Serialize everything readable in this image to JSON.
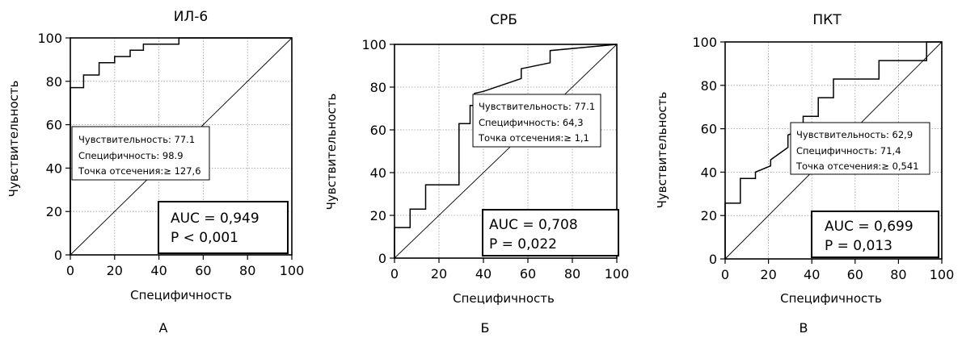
{
  "chart_data": [
    {
      "type": "line",
      "panel_label": "А",
      "title": "ИЛ-6",
      "xlabel": "Специфичность",
      "ylabel": "Чувствительность",
      "xlim": [
        0,
        100
      ],
      "ylim": [
        0,
        100
      ],
      "x_ticks": [
        "0",
        "20",
        "40",
        "60",
        "80",
        "100"
      ],
      "y_ticks": [
        "0",
        "20",
        "40",
        "60",
        "80",
        "100"
      ],
      "grid": true,
      "series": [
        {
          "values": [
            [
              0,
              0
            ],
            [
              0,
              77.1
            ],
            [
              6,
              77.1
            ],
            [
              6,
              82.9
            ],
            [
              13,
              82.9
            ],
            [
              13,
              88.6
            ],
            [
              20,
              88.6
            ],
            [
              20,
              91.4
            ],
            [
              27,
              91.4
            ],
            [
              27,
              94.3
            ],
            [
              33,
              94.3
            ],
            [
              33,
              97.1
            ],
            [
              49,
              97.1
            ],
            [
              49,
              100
            ],
            [
              100,
              100
            ]
          ]
        }
      ],
      "reference_line": [
        [
          0,
          0
        ],
        [
          100,
          100
        ]
      ],
      "cutoff_box": {
        "lines": [
          "Чувствительность: 77.1",
          "Специфичность: 98.9",
          "Точка отсечения:≥ 127,6"
        ]
      },
      "stats_box": {
        "lines": [
          "AUC = 0,949",
          "P < 0,001"
        ]
      }
    },
    {
      "type": "line",
      "panel_label": "Б",
      "title": "СРБ",
      "xlabel": "Специфичность",
      "ylabel": "Чувствительность",
      "xlim": [
        0,
        100
      ],
      "ylim": [
        0,
        100
      ],
      "x_ticks": [
        "0",
        "20",
        "40",
        "60",
        "80",
        "100"
      ],
      "y_ticks": [
        "0",
        "20",
        "40",
        "60",
        "80",
        "100"
      ],
      "grid": true,
      "series": [
        {
          "values": [
            [
              0,
              0
            ],
            [
              0,
              14.3
            ],
            [
              7,
              14.3
            ],
            [
              7,
              22.9
            ],
            [
              14,
              22.9
            ],
            [
              14,
              34.3
            ],
            [
              29,
              34.3
            ],
            [
              29,
              62.9
            ],
            [
              34,
              62.9
            ],
            [
              34,
              71.4
            ],
            [
              36,
              71.4
            ],
            [
              36,
              77.1
            ],
            [
              40,
              78
            ],
            [
              57,
              84
            ],
            [
              57,
              88.6
            ],
            [
              70,
              91.4
            ],
            [
              70,
              97.1
            ],
            [
              100,
              100
            ]
          ]
        }
      ],
      "reference_line": [
        [
          0,
          0
        ],
        [
          100,
          100
        ]
      ],
      "cutoff_box": {
        "lines": [
          "Чувствительность: 77.1",
          "Специфичность: 64,3",
          "Точка отсечения:≥ 1,1"
        ]
      },
      "stats_box": {
        "lines": [
          "AUC = 0,708",
          "P = 0,022"
        ]
      }
    },
    {
      "type": "line",
      "panel_label": "В",
      "title": "ПКТ",
      "xlabel": "Специфичность",
      "ylabel": "Чувствительность",
      "xlim": [
        0,
        100
      ],
      "ylim": [
        0,
        100
      ],
      "x_ticks": [
        "0",
        "20",
        "40",
        "60",
        "80",
        "100"
      ],
      "y_ticks": [
        "0",
        "20",
        "40",
        "60",
        "80",
        "100"
      ],
      "grid": true,
      "series": [
        {
          "values": [
            [
              0,
              0
            ],
            [
              0,
              25.7
            ],
            [
              7,
              25.7
            ],
            [
              7,
              37.1
            ],
            [
              14,
              37.1
            ],
            [
              14,
              40
            ],
            [
              21,
              42.9
            ],
            [
              21,
              45.7
            ],
            [
              29,
              51.4
            ],
            [
              29,
              57.1
            ],
            [
              36,
              60
            ],
            [
              36,
              65.7
            ],
            [
              43,
              65.7
            ],
            [
              43,
              74.3
            ],
            [
              50,
              74.3
            ],
            [
              50,
              82.9
            ],
            [
              71,
              82.9
            ],
            [
              71,
              91.4
            ],
            [
              93,
              91.4
            ],
            [
              93,
              100
            ],
            [
              100,
              100
            ]
          ]
        }
      ],
      "reference_line": [
        [
          0,
          0
        ],
        [
          100,
          100
        ]
      ],
      "cutoff_box": {
        "lines": [
          "Чувствительность: 62,9",
          "Специфичность: 71,4",
          "Точка отсечения:≥ 0,541"
        ]
      },
      "stats_box": {
        "lines": [
          "AUC = 0,699",
          "P = 0,013"
        ]
      }
    }
  ]
}
